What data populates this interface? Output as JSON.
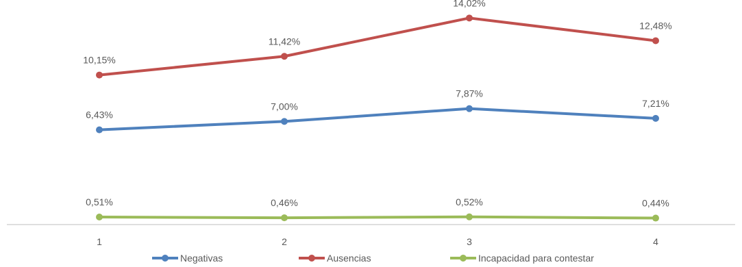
{
  "chart_data": {
    "type": "line",
    "x": [
      "1",
      "2",
      "3",
      "4"
    ],
    "series": [
      {
        "name": "Negativas",
        "values": [
          6.43,
          7.0,
          7.87,
          7.21
        ],
        "labels": [
          "6,43%",
          "7,00%",
          "7,87%",
          "7,21%"
        ],
        "color": "#4f81bd"
      },
      {
        "name": "Ausencias",
        "values": [
          10.15,
          11.42,
          14.02,
          12.48
        ],
        "labels": [
          "10,15%",
          "11,42%",
          "14,02%",
          "12,48%"
        ],
        "color": "#c0504d"
      },
      {
        "name": "Incapacidad para contestar",
        "values": [
          0.51,
          0.46,
          0.52,
          0.44
        ],
        "labels": [
          "0,51%",
          "0,46%",
          "0,52%",
          "0,44%"
        ],
        "color": "#9bbb59"
      }
    ],
    "ylim": [
      0,
      15.15
    ],
    "grid": false,
    "legend": "bottom",
    "axis_color": "#bfbfbf"
  }
}
